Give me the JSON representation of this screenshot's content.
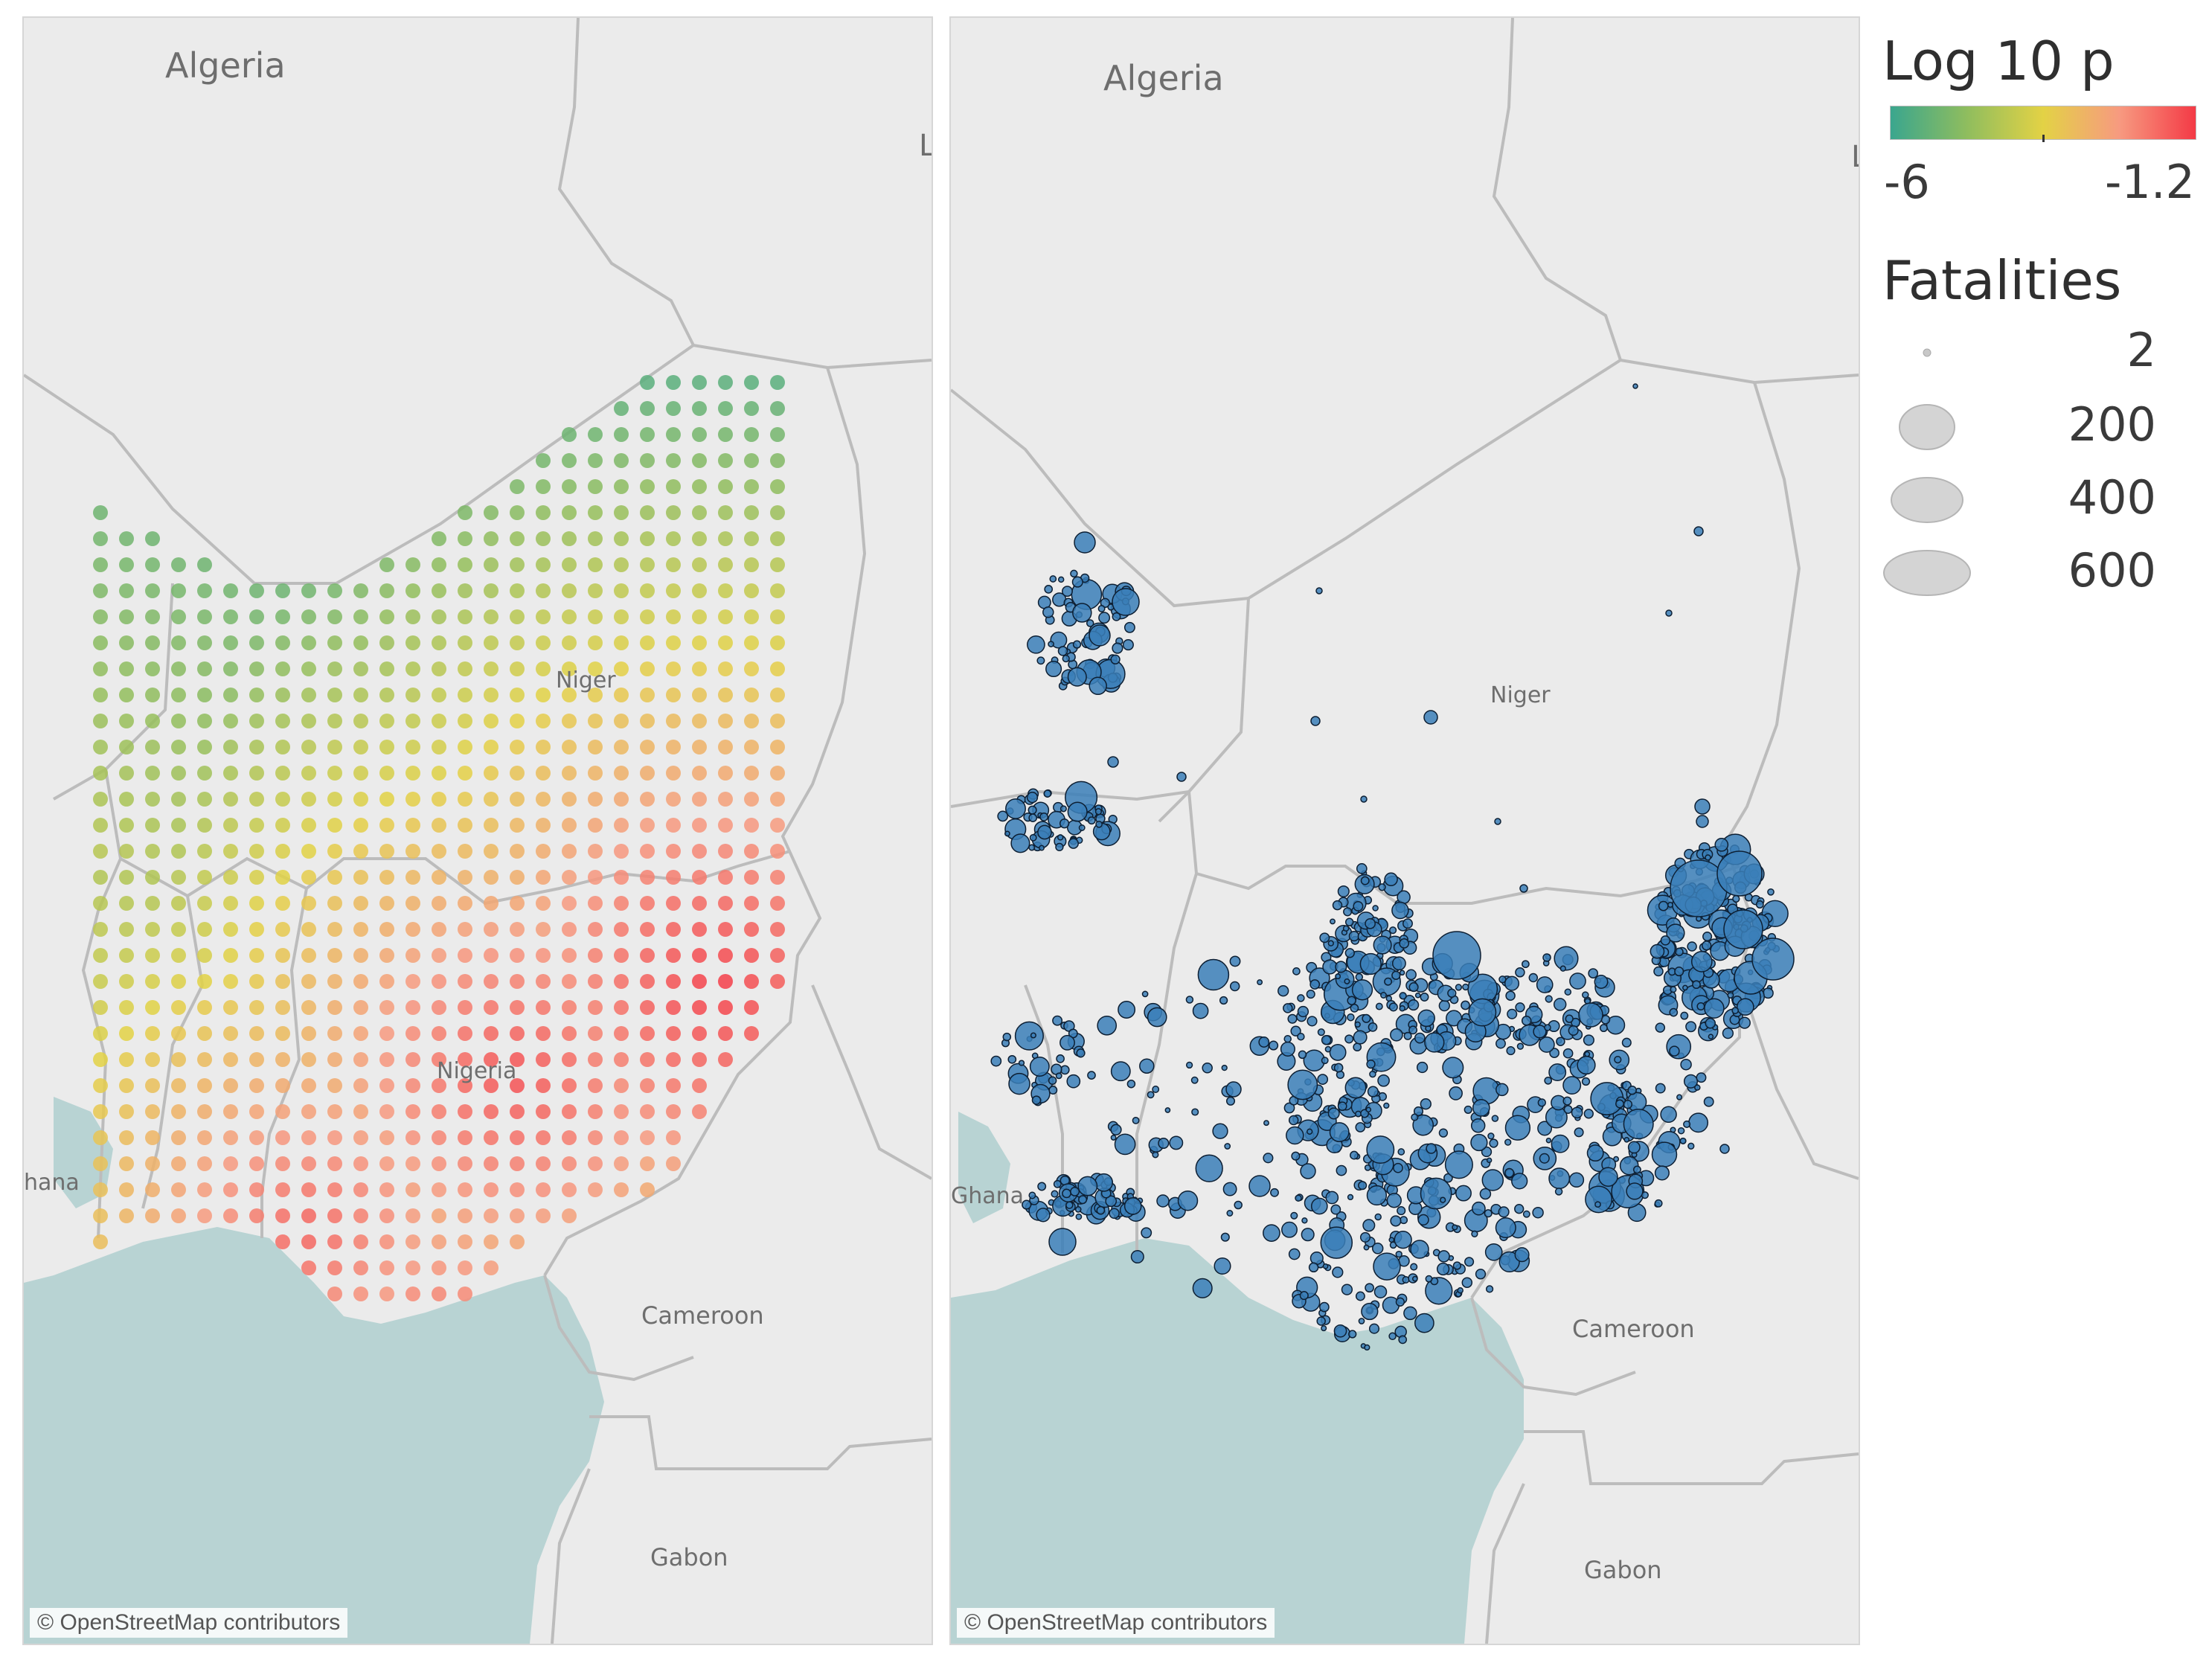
{
  "maps": {
    "left": {
      "labels": {
        "algeria": "Algeria",
        "niger": "Niger",
        "nigeria": "Nigeria",
        "ghana": "hana",
        "cameroon": "Cameroon",
        "gabon": "Gabon",
        "edge": "L"
      },
      "attribution": "© OpenStreetMap contributors"
    },
    "right": {
      "labels": {
        "algeria": "Algeria",
        "niger": "Niger",
        "ghana": "Ghana",
        "cameroon": "Cameroon",
        "gabon": "Gabon",
        "edge": "L"
      },
      "attribution": "© OpenStreetMap contributors"
    }
  },
  "legend": {
    "color": {
      "title": "Log 10 p",
      "min_label": "-6",
      "max_label": "-1.2",
      "min": -6,
      "max": -1.2,
      "colors": [
        "#3aa68e",
        "#8fbd5e",
        "#e3d245",
        "#f79a80",
        "#f43a46"
      ]
    },
    "size": {
      "title": "Fatalities",
      "items": [
        {
          "label": "2",
          "value": 2
        },
        {
          "label": "200",
          "value": 200
        },
        {
          "label": "400",
          "value": 400
        },
        {
          "label": "600",
          "value": 600
        }
      ]
    }
  },
  "colors": {
    "land": "#ebebeb",
    "sea": "#b8d3d3",
    "border": "#bcbcbc",
    "event_fill": "#3b7fb8",
    "event_stroke": "#0d1f33"
  }
}
